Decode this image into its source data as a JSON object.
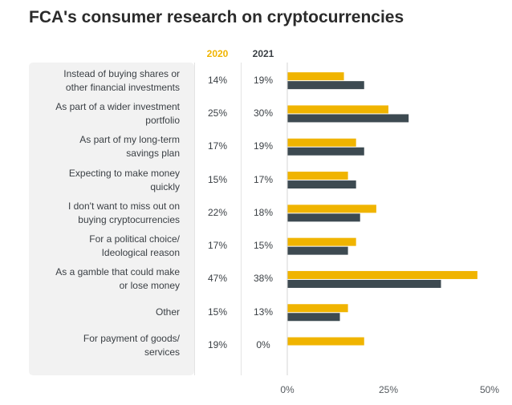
{
  "chart_data": {
    "type": "bar",
    "title": "FCA's consumer research on cryptocurrencies",
    "orientation": "horizontal",
    "categories": [
      "Instead of buying shares or\nother financial investments",
      "As part of a wider investment\nportfolio",
      "As part of my long-term\nsavings plan",
      "Expecting to make money\nquickly",
      "I don't want to miss out on\nbuying cryptocurrencies",
      "For a political choice/\nIdeological reason",
      "As a gamble that could make\nor lose money",
      "Other",
      "For payment of goods/\nservices"
    ],
    "series": [
      {
        "name": "2020",
        "color": "#f0b400",
        "values": [
          14,
          25,
          17,
          15,
          22,
          17,
          47,
          15,
          19
        ]
      },
      {
        "name": "2021",
        "color": "#3d4a51",
        "values": [
          19,
          30,
          19,
          17,
          18,
          15,
          38,
          13,
          0
        ]
      }
    ],
    "value_labels": {
      "2020": [
        "14%",
        "25%",
        "17%",
        "15%",
        "22%",
        "17%",
        "47%",
        "15%",
        "19%"
      ],
      "2021": [
        "19%",
        "30%",
        "19%",
        "17%",
        "18%",
        "15%",
        "38%",
        "13%",
        "0%"
      ]
    },
    "xlim": [
      0,
      50
    ],
    "xticks": [
      0,
      25,
      50
    ],
    "xtick_labels": [
      "0%",
      "25%",
      "50%"
    ],
    "grid": false,
    "legend": "column headers above value columns"
  }
}
